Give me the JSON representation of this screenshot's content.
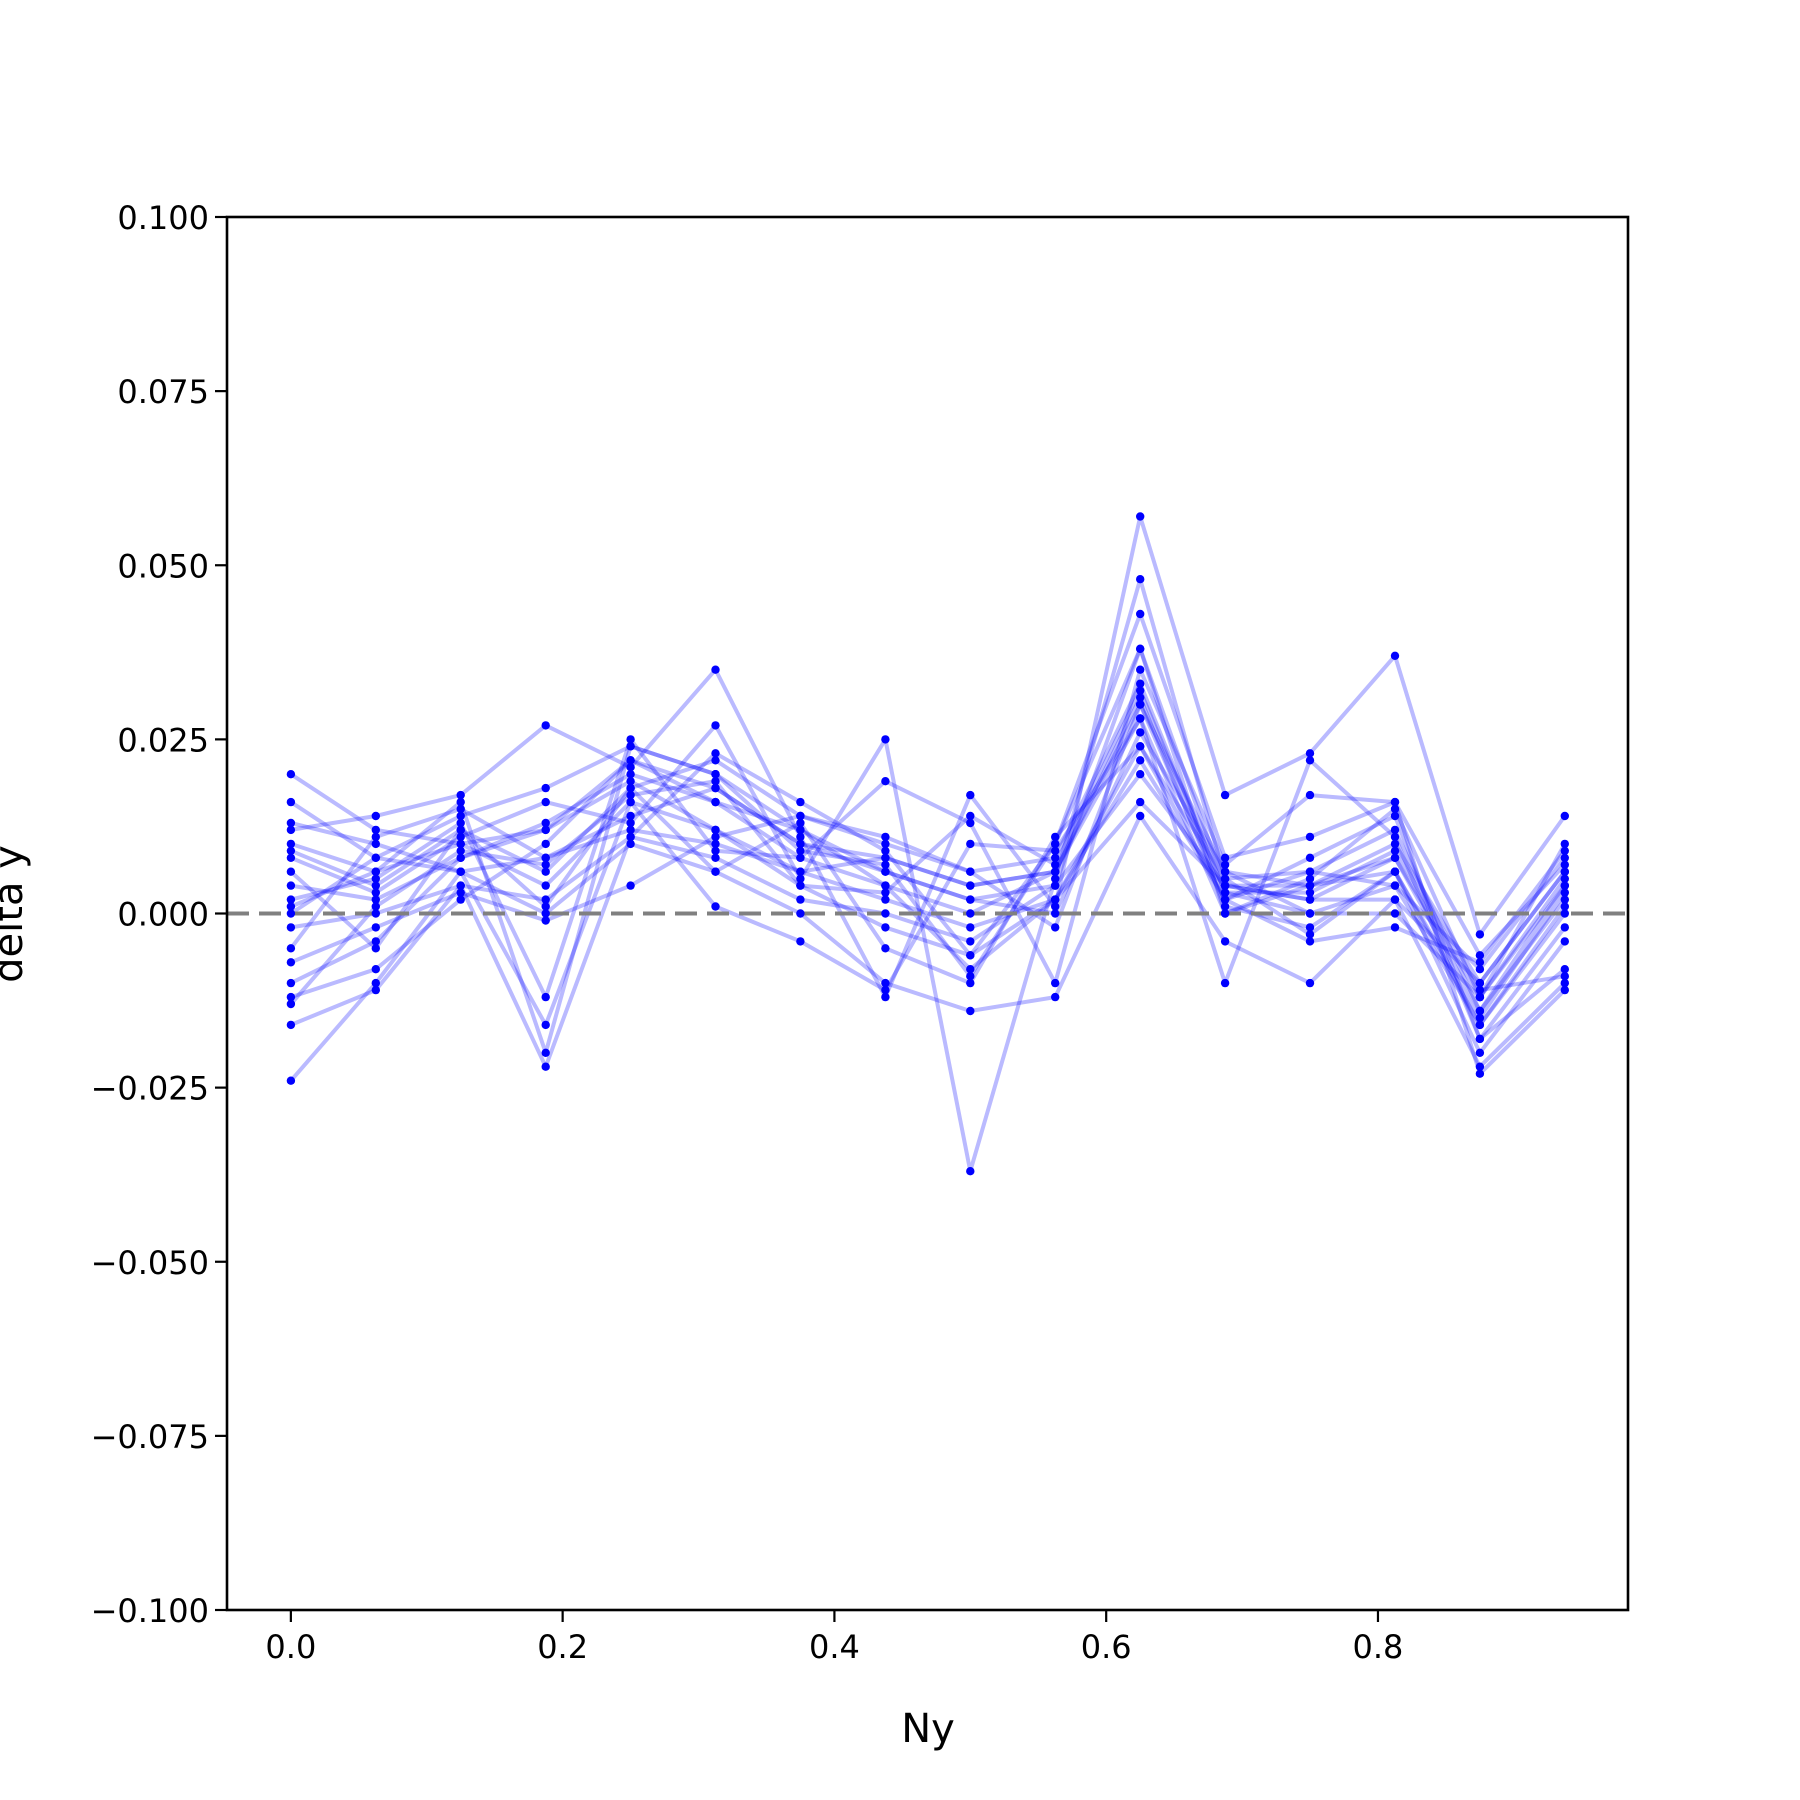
{
  "chart_data": {
    "type": "line",
    "title": "",
    "xlabel": "Ny",
    "ylabel": "delta y",
    "xlim": [
      -0.047,
      0.984
    ],
    "ylim": [
      -0.1,
      0.1
    ],
    "grid": false,
    "legend": "none",
    "x_ticks": [
      0.0,
      0.2,
      0.4,
      0.6,
      0.8
    ],
    "x_tick_labels": [
      "0.0",
      "0.2",
      "0.4",
      "0.6",
      "0.8"
    ],
    "y_ticks": [
      0.1,
      0.075,
      0.05,
      0.025,
      0.0,
      -0.025,
      -0.05,
      -0.075,
      -0.1
    ],
    "y_tick_labels": [
      "0.100",
      "0.075",
      "0.050",
      "0.025",
      "0.000",
      "−0.025",
      "−0.050",
      "−0.075",
      "−0.100"
    ],
    "reference_line": {
      "y": 0.0,
      "style": "dashed",
      "color": "#808080"
    },
    "colors": {
      "series": "#0000ff",
      "reference": "#808080"
    },
    "x": [
      0.0,
      0.0625,
      0.125,
      0.1875,
      0.25,
      0.3125,
      0.375,
      0.4375,
      0.5,
      0.5625,
      0.625,
      0.6875,
      0.75,
      0.8125,
      0.875,
      0.9375
    ],
    "series": [
      {
        "values": [
          0.02,
          0.012,
          0.01,
          0.012,
          0.022,
          0.018,
          0.01,
          0.008,
          0.004,
          0.006,
          0.03,
          0.006,
          0.004,
          0.01,
          -0.01,
          0.006
        ]
      },
      {
        "values": [
          0.016,
          0.008,
          0.014,
          0.018,
          0.024,
          0.02,
          0.012,
          0.006,
          0.002,
          0.004,
          0.038,
          0.004,
          0.002,
          0.008,
          -0.012,
          0.004
        ]
      },
      {
        "values": [
          0.013,
          0.01,
          0.006,
          0.008,
          0.012,
          0.01,
          0.006,
          0.002,
          -0.002,
          0.002,
          0.024,
          0.002,
          0.006,
          0.012,
          -0.014,
          0.002
        ]
      },
      {
        "values": [
          0.009,
          0.004,
          0.012,
          0.006,
          0.018,
          0.022,
          0.014,
          0.01,
          0.006,
          0.008,
          0.033,
          0.003,
          0.0,
          0.004,
          -0.008,
          0.008
        ]
      },
      {
        "values": [
          0.004,
          0.002,
          0.008,
          0.013,
          0.02,
          0.016,
          0.008,
          0.004,
          0.0,
          0.006,
          0.028,
          0.0,
          0.004,
          0.006,
          -0.016,
          0.0
        ]
      },
      {
        "values": [
          0.001,
          0.006,
          0.01,
          0.004,
          0.016,
          0.012,
          0.004,
          -0.002,
          -0.006,
          0.002,
          0.022,
          0.002,
          0.008,
          0.014,
          -0.018,
          -0.002
        ]
      },
      {
        "values": [
          -0.002,
          0.0,
          0.004,
          0.002,
          0.011,
          0.008,
          0.002,
          0.0,
          -0.004,
          0.004,
          0.02,
          0.004,
          0.002,
          0.002,
          -0.01,
          0.006
        ]
      },
      {
        "values": [
          -0.005,
          0.011,
          0.015,
          0.008,
          0.014,
          0.018,
          0.01,
          0.006,
          0.002,
          0.0,
          0.026,
          0.006,
          0.0,
          0.0,
          -0.012,
          0.01
        ]
      },
      {
        "values": [
          -0.01,
          -0.004,
          0.008,
          0.012,
          0.019,
          0.012,
          0.006,
          0.008,
          0.004,
          0.006,
          0.031,
          0.001,
          -0.002,
          0.006,
          -0.02,
          -0.004
        ]
      },
      {
        "values": [
          -0.012,
          -0.008,
          0.002,
          0.01,
          0.022,
          0.016,
          0.012,
          0.004,
          -0.008,
          0.002,
          0.016,
          0.004,
          0.004,
          0.008,
          -0.014,
          0.004
        ]
      },
      {
        "values": [
          -0.024,
          -0.01,
          0.006,
          0.0,
          0.01,
          0.006,
          0.0,
          -0.01,
          -0.014,
          -0.012,
          0.014,
          -0.004,
          -0.01,
          0.002,
          -0.022,
          -0.01
        ]
      },
      {
        "values": [
          -0.016,
          -0.011,
          0.004,
          -0.022,
          0.011,
          0.023,
          0.016,
          0.009,
          -0.006,
          0.01,
          0.043,
          0.008,
          0.011,
          0.016,
          -0.023,
          -0.011
        ]
      },
      {
        "values": [
          0.012,
          0.014,
          0.017,
          0.027,
          0.021,
          0.035,
          0.011,
          -0.012,
          0.017,
          0.001,
          0.057,
          0.017,
          0.023,
          0.037,
          -0.003,
          0.014
        ]
      },
      {
        "values": [
          0.008,
          0.003,
          0.011,
          0.016,
          0.013,
          0.027,
          0.005,
          0.025,
          -0.037,
          0.005,
          0.048,
          0.005,
          0.006,
          0.004,
          -0.016,
          0.001
        ]
      },
      {
        "values": [
          0.002,
          0.005,
          0.013,
          -0.012,
          0.025,
          0.009,
          0.008,
          0.019,
          0.013,
          -0.01,
          0.035,
          0.007,
          0.017,
          0.016,
          -0.006,
          0.007
        ]
      },
      {
        "values": [
          0.0,
          0.008,
          0.006,
          -0.016,
          0.016,
          0.001,
          -0.004,
          -0.011,
          0.01,
          0.009,
          0.028,
          -0.01,
          0.022,
          0.011,
          -0.018,
          -0.008
        ]
      },
      {
        "values": [
          -0.007,
          -0.002,
          0.003,
          -0.001,
          0.004,
          0.011,
          0.014,
          0.011,
          0.006,
          -0.002,
          0.03,
          0.002,
          -0.004,
          -0.002,
          -0.007,
          0.009
        ]
      },
      {
        "values": [
          0.01,
          0.006,
          0.016,
          -0.02,
          0.024,
          0.02,
          0.009,
          0.007,
          -0.009,
          0.01,
          0.038,
          0.0,
          0.005,
          0.015,
          -0.012,
          0.005
        ]
      },
      {
        "values": [
          -0.013,
          0.001,
          0.009,
          0.007,
          0.017,
          0.019,
          0.004,
          0.003,
          0.014,
          0.007,
          0.032,
          0.003,
          0.003,
          0.009,
          -0.011,
          -0.009
        ]
      },
      {
        "values": [
          0.006,
          -0.005,
          0.012,
          0.001,
          0.018,
          0.006,
          0.013,
          -0.005,
          -0.01,
          0.011,
          0.024,
          0.005,
          -0.003,
          0.006,
          -0.015,
          0.003
        ]
      }
    ]
  }
}
